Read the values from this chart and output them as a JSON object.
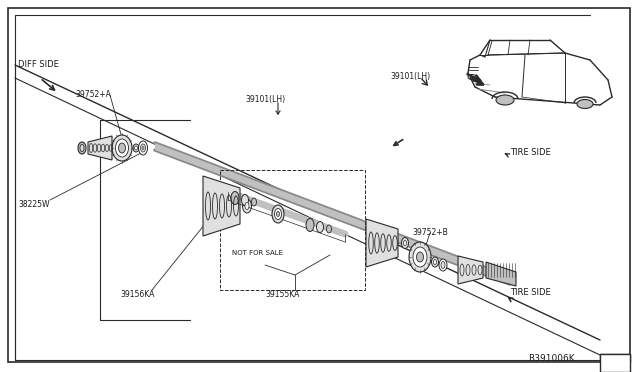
{
  "page_bg": "#ffffff",
  "bg_inner": "#f5f5f5",
  "line_color": "#2a2a2a",
  "text_color": "#1a1a1a",
  "diagram_id": "R391006K",
  "labels": {
    "diff_side": "DIFF SIDE",
    "tire_side_1": "TIRE SIDE",
    "tire_side_2": "TIRE SIDE",
    "not_for_sale": "NOT FOR SALE",
    "part_39752A": "39752+A",
    "part_38225W": "38225W",
    "part_39156KA": "39156KA",
    "part_39101LH_left": "39101(LH)",
    "part_39101LH_right": "39101(LH)",
    "part_39155KA": "39155KA",
    "part_39752B": "39752+B"
  },
  "font_size_small": 5.5,
  "font_size_label": 6.0,
  "font_size_partno": 5.5,
  "font_size_id": 6.5,
  "gray_light": "#e0e0e0",
  "gray_mid": "#c0c0c0",
  "gray_dark": "#888888"
}
